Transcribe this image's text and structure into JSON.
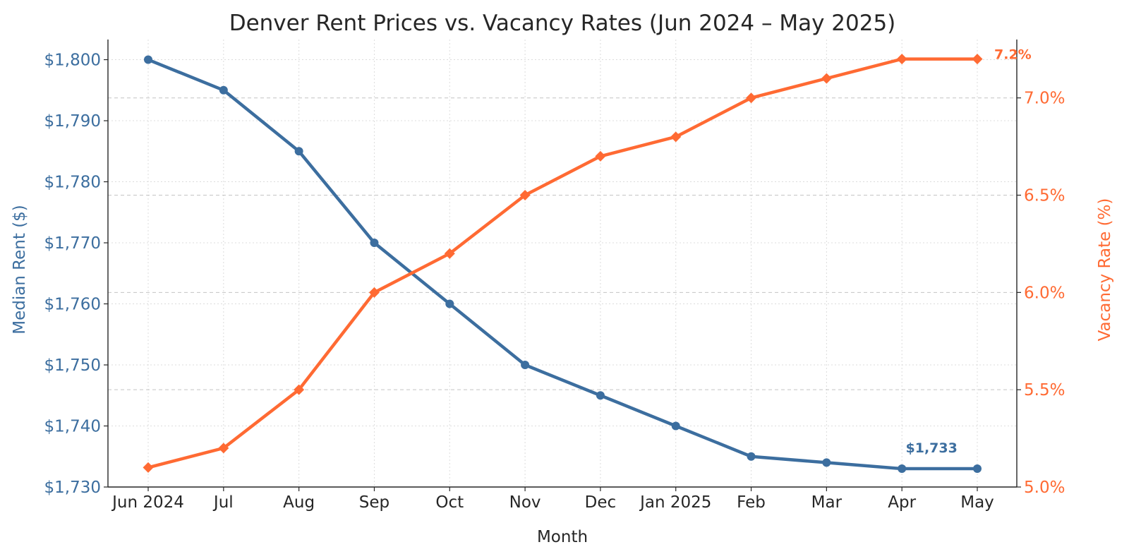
{
  "chart_data": {
    "type": "line",
    "title": "Denver Rent Prices vs. Vacancy Rates (Jun 2024 – May 2025)",
    "xlabel": "Month",
    "categories": [
      "Jun 2024",
      "Jul",
      "Aug",
      "Sep",
      "Oct",
      "Nov",
      "Dec",
      "Jan 2025",
      "Feb",
      "Mar",
      "Apr",
      "May"
    ],
    "y_left": {
      "label": "Median Rent ($)",
      "range": [
        1730,
        1803.3
      ],
      "ticks": [
        1730,
        1740,
        1750,
        1760,
        1770,
        1780,
        1790,
        1800
      ],
      "tick_labels": [
        "$1,730",
        "$1,740",
        "$1,750",
        "$1,760",
        "$1,770",
        "$1,780",
        "$1,790",
        "$1,800"
      ],
      "color": "#3c6e9f"
    },
    "y_right": {
      "label": "Vacancy Rate (%)",
      "range": [
        5.0,
        7.3
      ],
      "ticks": [
        5.0,
        5.5,
        6.0,
        6.5,
        7.0
      ],
      "tick_labels": [
        "5.0%",
        "5.5%",
        "6.0%",
        "6.5%",
        "7.0%"
      ],
      "color": "#ff6a33"
    },
    "series": [
      {
        "name": "Median Rent ($)",
        "axis": "left",
        "marker": "circle",
        "color": "#3c6e9f",
        "values": [
          1800,
          1795,
          1785,
          1770,
          1760,
          1750,
          1745,
          1740,
          1735,
          1734,
          1733,
          1733
        ]
      },
      {
        "name": "Vacancy Rate (%)",
        "axis": "right",
        "marker": "diamond",
        "color": "#ff6a33",
        "values": [
          5.1,
          5.2,
          5.5,
          6.0,
          6.2,
          6.5,
          6.7,
          6.8,
          7.0,
          7.1,
          7.2,
          7.2
        ]
      }
    ],
    "annotations": [
      {
        "text": "$1,733",
        "series": 0,
        "index": 10
      },
      {
        "text": "7.2%",
        "series": 1,
        "index": 11
      }
    ],
    "grid": true,
    "legend": "none"
  }
}
